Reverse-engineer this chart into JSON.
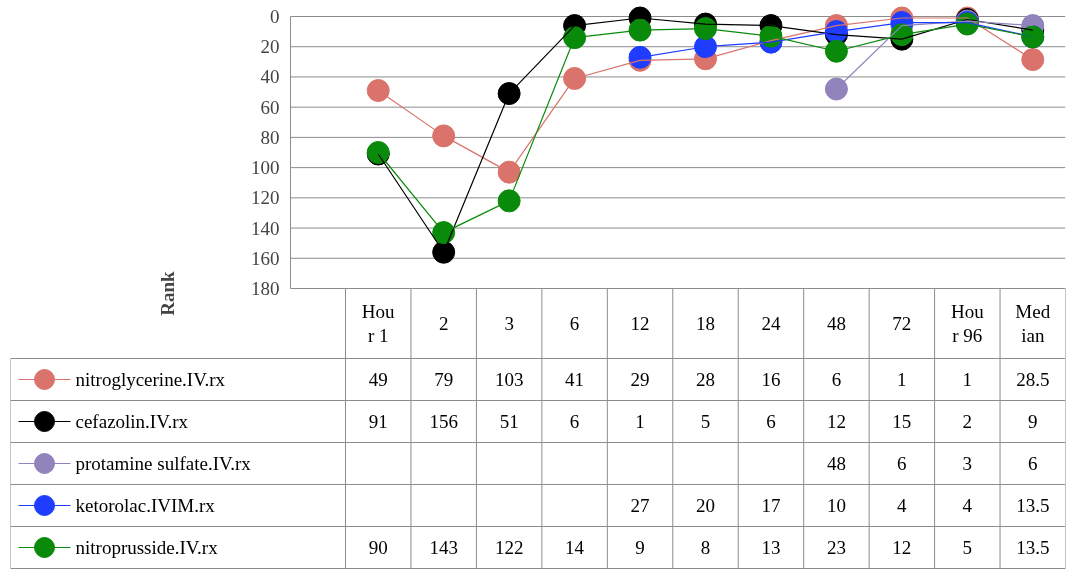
{
  "chart_data": {
    "type": "line",
    "ylabel": "Rank",
    "categories": [
      "Hour 1",
      "2",
      "3",
      "6",
      "12",
      "18",
      "24",
      "48",
      "72",
      "Hour 96",
      "Median"
    ],
    "ylim": [
      180,
      0
    ],
    "yticks": [
      0,
      20,
      40,
      60,
      80,
      100,
      120,
      140,
      160,
      180
    ],
    "grid": "y",
    "marker": "circle",
    "data_labels": true,
    "legend": "bottom",
    "series": [
      {
        "name": "nitroglycerine.IV.rx",
        "color": "#d9736b",
        "values": [
          49,
          79,
          103,
          41,
          29,
          28,
          16,
          6,
          1,
          1,
          28.5
        ]
      },
      {
        "name": "cefazolin.IV.rx",
        "color": "#000000",
        "values": [
          91,
          156,
          51,
          6,
          1,
          5,
          6,
          12,
          15,
          2,
          9
        ]
      },
      {
        "name": "protamine sulfate.IV.rx",
        "color": "#9183bb",
        "values": [
          null,
          null,
          null,
          null,
          null,
          null,
          null,
          48,
          6,
          3,
          6
        ]
      },
      {
        "name": "ketorolac.IVIM.rx",
        "color": "#1f3dff",
        "values": [
          null,
          null,
          null,
          null,
          27,
          20,
          17,
          10,
          4,
          4,
          13.5
        ]
      },
      {
        "name": "nitroprusside.IV.rx",
        "color": "#0a8a0a",
        "values": [
          90,
          143,
          122,
          14,
          9,
          8,
          13,
          23,
          12,
          5,
          13.5
        ]
      }
    ]
  }
}
